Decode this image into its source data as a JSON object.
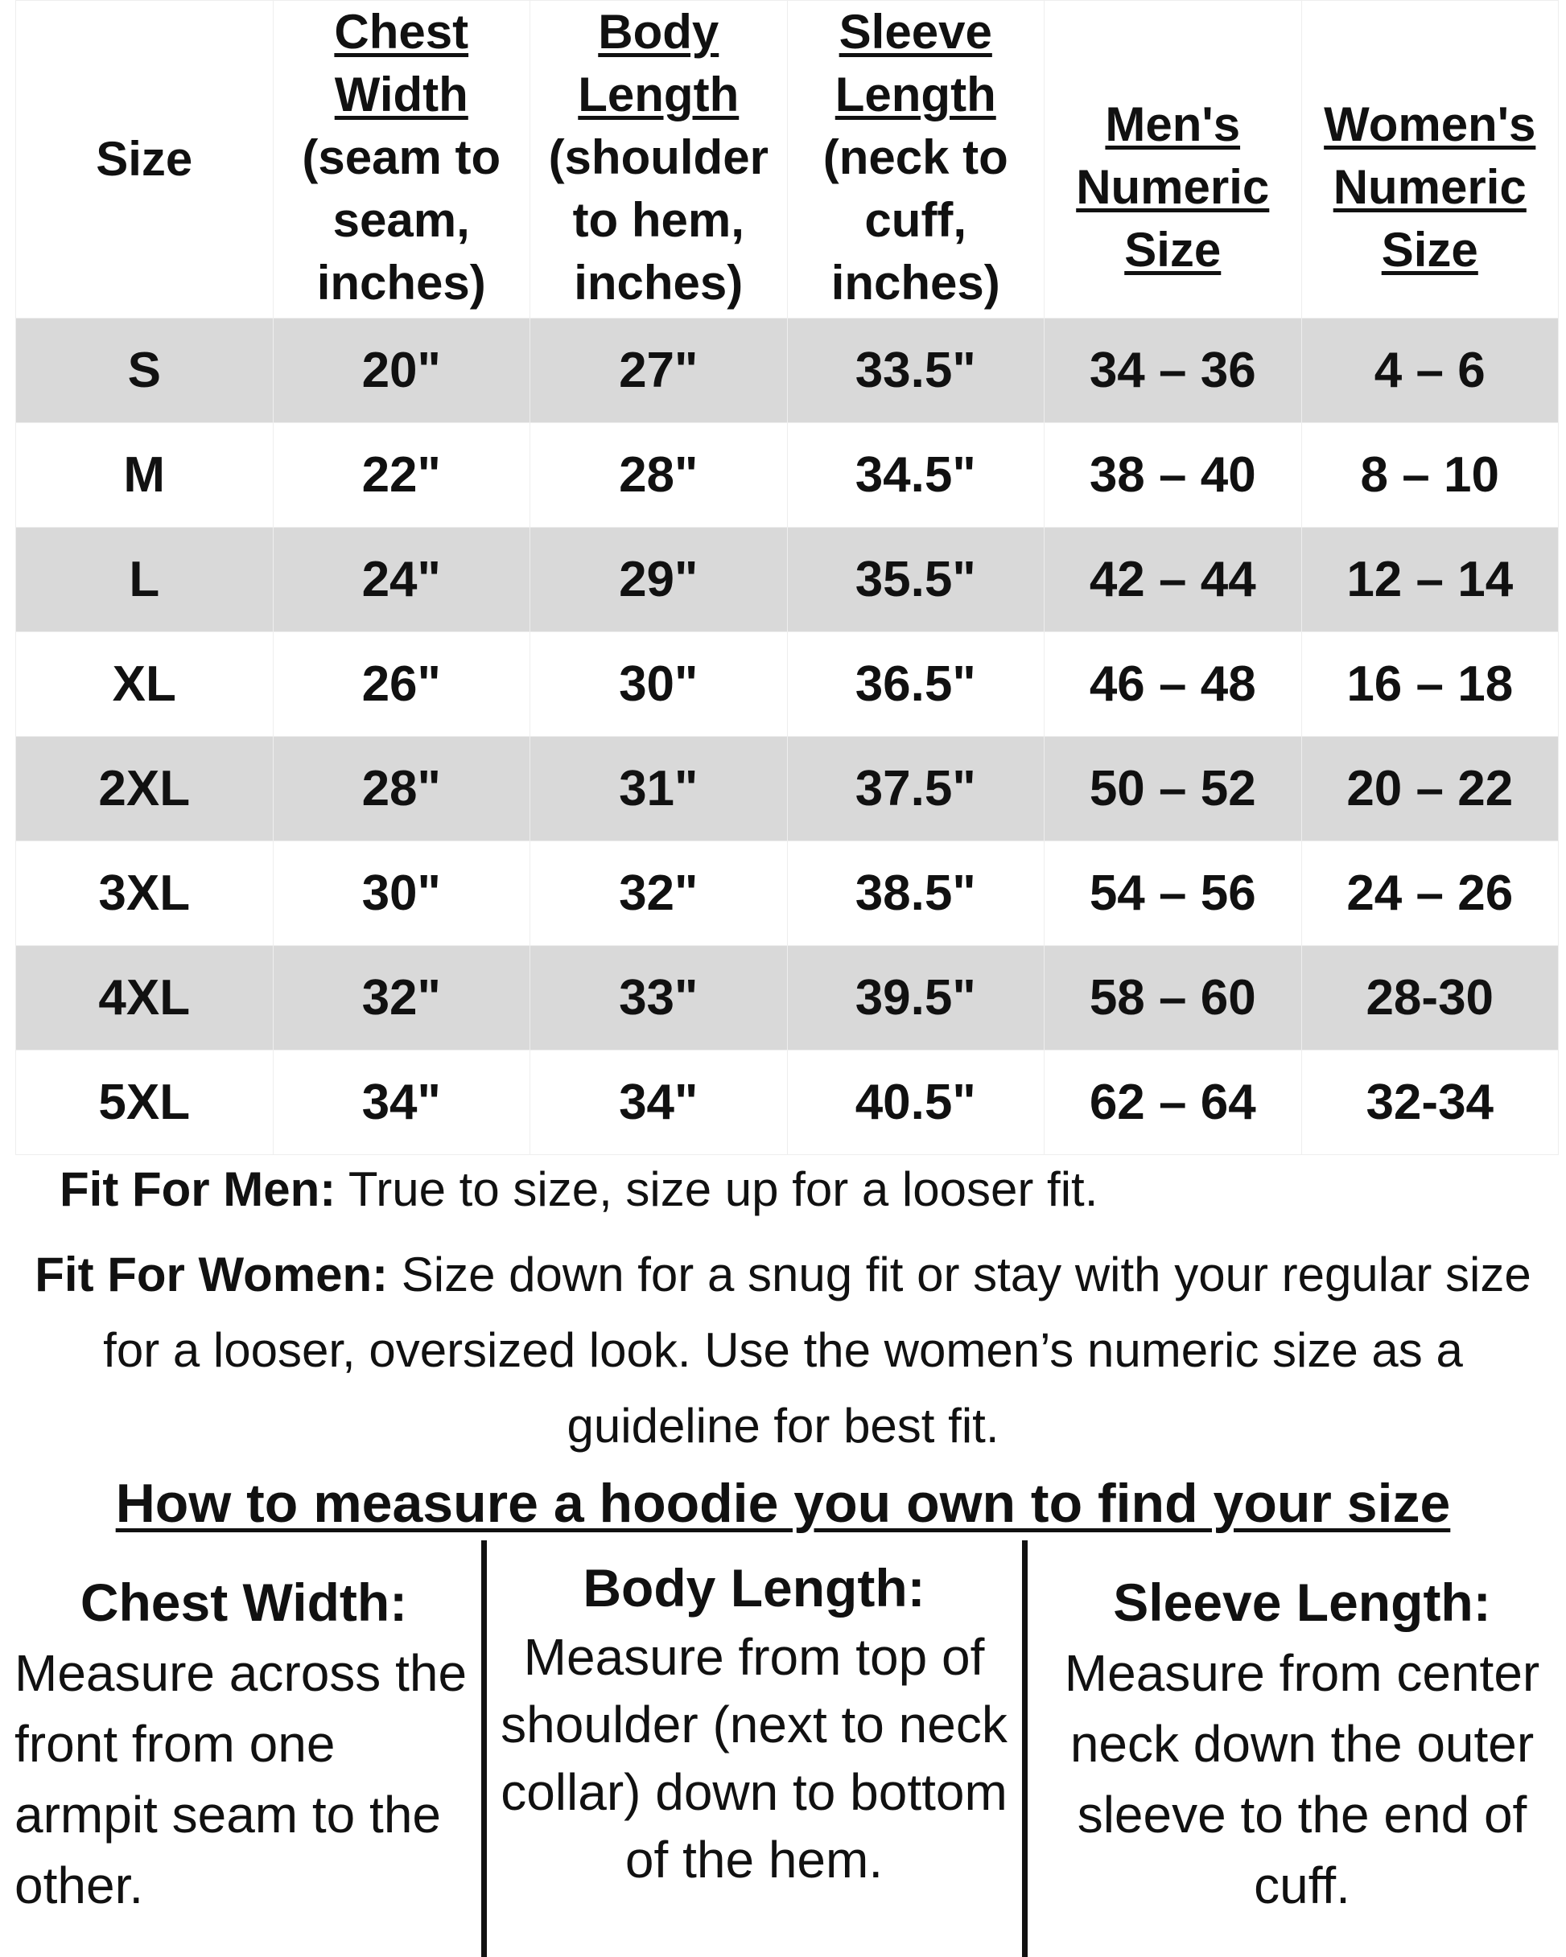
{
  "table": {
    "headers": [
      {
        "title": "",
        "sub": "Size"
      },
      {
        "title": "Chest Width",
        "sub": "(seam to seam, inches)"
      },
      {
        "title": "Body Length",
        "sub": "(shoulder to hem, inches)"
      },
      {
        "title": "Sleeve Length",
        "sub": "(neck to cuff, inches)"
      },
      {
        "title": "Men's Numeric Size",
        "sub": ""
      },
      {
        "title": "Women's Numeric Size",
        "sub": ""
      }
    ],
    "rows": [
      [
        "S",
        "20\"",
        "27\"",
        "33.5\"",
        "34 – 36",
        "4 – 6"
      ],
      [
        "M",
        "22\"",
        "28\"",
        "34.5\"",
        "38 – 40",
        "8 – 10"
      ],
      [
        "L",
        "24\"",
        "29\"",
        "35.5\"",
        "42 – 44",
        "12 – 14"
      ],
      [
        "XL",
        "26\"",
        "30\"",
        "36.5\"",
        "46 – 48",
        "16 – 18"
      ],
      [
        "2XL",
        "28\"",
        "31\"",
        "37.5\"",
        "50 – 52",
        "20 – 22"
      ],
      [
        "3XL",
        "30\"",
        "32\"",
        "38.5\"",
        "54 – 56",
        "24 – 26"
      ],
      [
        "4XL",
        "32\"",
        "33\"",
        "39.5\"",
        "58 – 60",
        "28-30"
      ],
      [
        "5XL",
        "34\"",
        "34\"",
        "40.5\"",
        "62 – 64",
        "32-34"
      ]
    ],
    "alt_row_color": "#d9d9d9"
  },
  "fit": {
    "men_label": "Fit For Men:",
    "men_text": " True to size, size up for a looser fit.",
    "women_label": "Fit For Women:",
    "women_text": " Size down for a snug fit or stay with your regular size for a looser, oversized look. Use the women’s numeric size as a guideline for best fit."
  },
  "measure": {
    "heading": "How to measure a hoodie you own to find your size",
    "columns": [
      {
        "title": "Chest Width:",
        "text": "Measure across the front from one armpit seam to the other."
      },
      {
        "title": "Body Length:",
        "text": "Measure from top of shoulder (next to neck collar) down to bottom of the hem."
      },
      {
        "title": "Sleeve Length:",
        "text": "Measure from center neck down the outer sleeve to the end of cuff."
      }
    ]
  }
}
